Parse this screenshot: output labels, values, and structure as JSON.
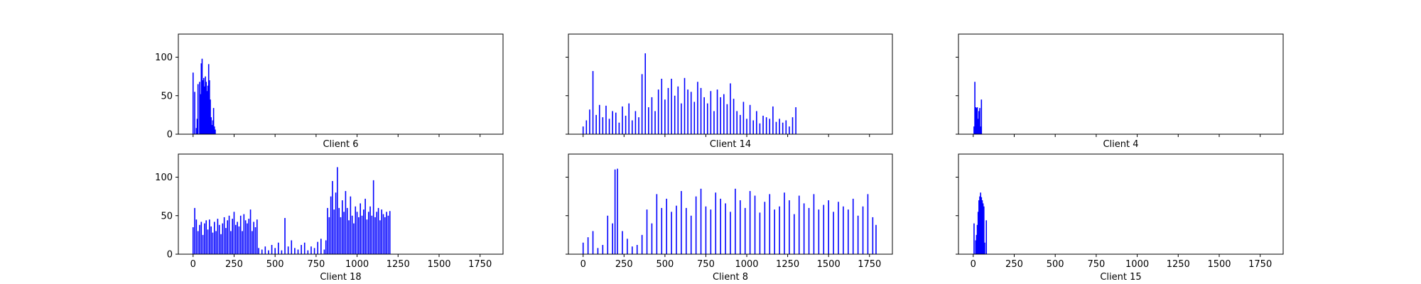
{
  "colors": {
    "bar": "#0000ff",
    "bar_edge": "#000000",
    "accent": "#ff0000",
    "axes": "#000000",
    "background": "#ffffff"
  },
  "chart_data": [
    {
      "type": "bar",
      "subplot": "top-left",
      "xlabel": "Client 6",
      "show_xticklabels": false,
      "show_yticklabels": true,
      "xlim": [
        -90,
        1890
      ],
      "ylim": [
        0,
        130
      ],
      "xticks": [
        0,
        250,
        500,
        750,
        1000,
        1250,
        1500,
        1750
      ],
      "yticks": [
        0,
        50,
        100
      ],
      "grid": false,
      "legend": "none",
      "series": [
        {
          "x": [
            0,
            10,
            20,
            25,
            30,
            40,
            45,
            50,
            55,
            60,
            65,
            70,
            75,
            80,
            85,
            90,
            95,
            100,
            105,
            110,
            115,
            120,
            125,
            130,
            135
          ],
          "values": [
            80,
            55,
            8,
            20,
            65,
            68,
            52,
            92,
            98,
            70,
            73,
            62,
            75,
            68,
            56,
            63,
            91,
            70,
            45,
            22,
            12,
            18,
            34,
            10,
            6
          ]
        }
      ]
    },
    {
      "type": "bar",
      "subplot": "top-middle",
      "xlabel": "Client 14",
      "show_xticklabels": false,
      "show_yticklabels": false,
      "xlim": [
        -90,
        1890
      ],
      "ylim": [
        0,
        130
      ],
      "xticks": [
        0,
        250,
        500,
        750,
        1000,
        1250,
        1500,
        1750
      ],
      "yticks": [
        0,
        50,
        100
      ],
      "grid": false,
      "legend": "none",
      "series": [
        {
          "x": [
            0,
            20,
            40,
            60,
            80,
            100,
            120,
            140,
            160,
            180,
            200,
            220,
            240,
            260,
            280,
            300,
            320,
            340,
            360,
            380,
            400,
            420,
            440,
            460,
            480,
            500,
            520,
            540,
            560,
            580,
            600,
            620,
            640,
            660,
            680,
            700,
            720,
            740,
            760,
            780,
            800,
            820,
            840,
            860,
            880,
            900,
            920,
            940,
            960,
            980,
            1000,
            1020,
            1040,
            1060,
            1080,
            1100,
            1120,
            1140,
            1160,
            1180,
            1200,
            1220,
            1240,
            1260,
            1280,
            1300
          ],
          "values": [
            10,
            18,
            32,
            82,
            25,
            38,
            22,
            37,
            20,
            30,
            28,
            15,
            36,
            24,
            40,
            18,
            30,
            22,
            78,
            105,
            35,
            48,
            30,
            58,
            72,
            45,
            60,
            72,
            50,
            62,
            40,
            73,
            58,
            55,
            42,
            68,
            60,
            48,
            40,
            56,
            30,
            58,
            48,
            52,
            39,
            66,
            46,
            30,
            25,
            42,
            20,
            38,
            18,
            30,
            14,
            24,
            22,
            20,
            36,
            16,
            20,
            15,
            18,
            10,
            22,
            35
          ]
        }
      ]
    },
    {
      "type": "bar",
      "subplot": "top-right",
      "xlabel": "Client 4",
      "show_xticklabels": false,
      "show_yticklabels": false,
      "xlim": [
        -90,
        1890
      ],
      "ylim": [
        0,
        130
      ],
      "xticks": [
        0,
        250,
        500,
        750,
        1000,
        1250,
        1500,
        1750
      ],
      "yticks": [
        0,
        50,
        100
      ],
      "grid": false,
      "legend": "none",
      "series": [
        {
          "x": [
            5,
            10,
            15,
            20,
            25,
            30,
            35,
            40,
            45,
            50
          ],
          "values": [
            10,
            68,
            35,
            34,
            35,
            20,
            30,
            34,
            10,
            45
          ]
        }
      ]
    },
    {
      "type": "bar",
      "subplot": "bottom-left",
      "xlabel": "Client 18",
      "show_xticklabels": true,
      "show_yticklabels": true,
      "xlim": [
        -90,
        1890
      ],
      "ylim": [
        0,
        130
      ],
      "xticks": [
        0,
        250,
        500,
        750,
        1000,
        1250,
        1500,
        1750
      ],
      "xticklabels": [
        "0",
        "250",
        "500",
        "750",
        "1000",
        "1250",
        "1500",
        "1750"
      ],
      "yticks": [
        0,
        50,
        100
      ],
      "grid": false,
      "legend": "none",
      "series": [
        {
          "x": [
            0,
            10,
            20,
            30,
            40,
            50,
            60,
            70,
            80,
            90,
            100,
            110,
            120,
            130,
            140,
            150,
            160,
            170,
            180,
            190,
            200,
            210,
            220,
            230,
            240,
            250,
            260,
            270,
            280,
            290,
            300,
            310,
            320,
            330,
            340,
            350,
            360,
            370,
            380,
            390,
            400,
            420,
            440,
            460,
            480,
            500,
            520,
            540,
            560,
            580,
            600,
            620,
            640,
            660,
            680,
            700,
            720,
            740,
            760,
            780,
            800,
            810,
            820,
            830,
            840,
            850,
            860,
            870,
            880,
            890,
            900,
            910,
            920,
            930,
            940,
            950,
            960,
            970,
            980,
            990,
            1000,
            1010,
            1020,
            1030,
            1040,
            1050,
            1060,
            1070,
            1080,
            1090,
            1100,
            1110,
            1120,
            1130,
            1140,
            1150,
            1160,
            1170,
            1180,
            1190,
            1200
          ],
          "values": [
            35,
            60,
            45,
            30,
            38,
            42,
            25,
            40,
            44,
            32,
            45,
            36,
            28,
            42,
            30,
            46,
            38,
            26,
            40,
            48,
            34,
            44,
            50,
            30,
            46,
            55,
            38,
            42,
            36,
            50,
            30,
            52,
            44,
            40,
            46,
            58,
            30,
            42,
            35,
            45,
            8,
            6,
            10,
            5,
            12,
            8,
            15,
            5,
            47,
            10,
            18,
            8,
            6,
            12,
            15,
            5,
            10,
            8,
            16,
            20,
            6,
            18,
            60,
            48,
            75,
            95,
            58,
            80,
            113,
            60,
            48,
            70,
            55,
            82,
            60,
            44,
            75,
            50,
            40,
            62,
            55,
            48,
            66,
            50,
            58,
            72,
            45,
            55,
            62,
            50,
            96,
            48,
            55,
            60,
            44,
            58,
            52,
            48,
            55,
            50,
            56
          ]
        }
      ]
    },
    {
      "type": "bar",
      "subplot": "bottom-middle",
      "xlabel": "Client 8",
      "show_xticklabels": true,
      "show_yticklabels": false,
      "xlim": [
        -90,
        1890
      ],
      "ylim": [
        0,
        130
      ],
      "xticks": [
        0,
        250,
        500,
        750,
        1000,
        1250,
        1500,
        1750
      ],
      "xticklabels": [
        "0",
        "250",
        "500",
        "750",
        "1000",
        "1250",
        "1500",
        "1750"
      ],
      "yticks": [
        0,
        50,
        100
      ],
      "grid": false,
      "legend": "none",
      "series": [
        {
          "x": [
            0,
            30,
            60,
            90,
            120,
            150,
            180,
            195,
            210,
            240,
            270,
            300,
            330,
            360,
            390,
            420,
            450,
            480,
            510,
            540,
            570,
            600,
            630,
            660,
            690,
            720,
            750,
            780,
            810,
            840,
            870,
            900,
            930,
            960,
            990,
            1020,
            1050,
            1080,
            1110,
            1140,
            1170,
            1200,
            1230,
            1260,
            1290,
            1320,
            1350,
            1380,
            1410,
            1440,
            1470,
            1500,
            1530,
            1560,
            1590,
            1620,
            1650,
            1680,
            1710,
            1740,
            1770,
            1790
          ],
          "values": [
            15,
            22,
            30,
            8,
            12,
            50,
            40,
            110,
            111,
            30,
            20,
            10,
            12,
            25,
            58,
            40,
            78,
            60,
            72,
            55,
            63,
            82,
            60,
            50,
            75,
            85,
            62,
            58,
            80,
            72,
            66,
            55,
            85,
            70,
            60,
            82,
            76,
            54,
            68,
            78,
            58,
            62,
            80,
            70,
            52,
            76,
            66,
            60,
            78,
            58,
            64,
            70,
            55,
            68,
            62,
            58,
            72,
            50,
            62,
            78,
            48,
            38
          ]
        }
      ]
    },
    {
      "type": "bar",
      "subplot": "bottom-right",
      "xlabel": "Client 15",
      "show_xticklabels": true,
      "show_yticklabels": false,
      "xlim": [
        -90,
        1890
      ],
      "ylim": [
        0,
        130
      ],
      "xticks": [
        0,
        250,
        500,
        750,
        1000,
        1250,
        1500,
        1750
      ],
      "xticklabels": [
        "0",
        "250",
        "500",
        "750",
        "1000",
        "1250",
        "1500",
        "1750"
      ],
      "yticks": [
        0,
        50,
        100
      ],
      "grid": false,
      "legend": "none",
      "series": [
        {
          "x": [
            5,
            15,
            20,
            25,
            30,
            35,
            40,
            45,
            50,
            55,
            60,
            65,
            70,
            80
          ],
          "values": [
            40,
            18,
            25,
            38,
            55,
            70,
            75,
            80,
            74,
            70,
            66,
            62,
            15,
            44
          ]
        }
      ]
    }
  ]
}
